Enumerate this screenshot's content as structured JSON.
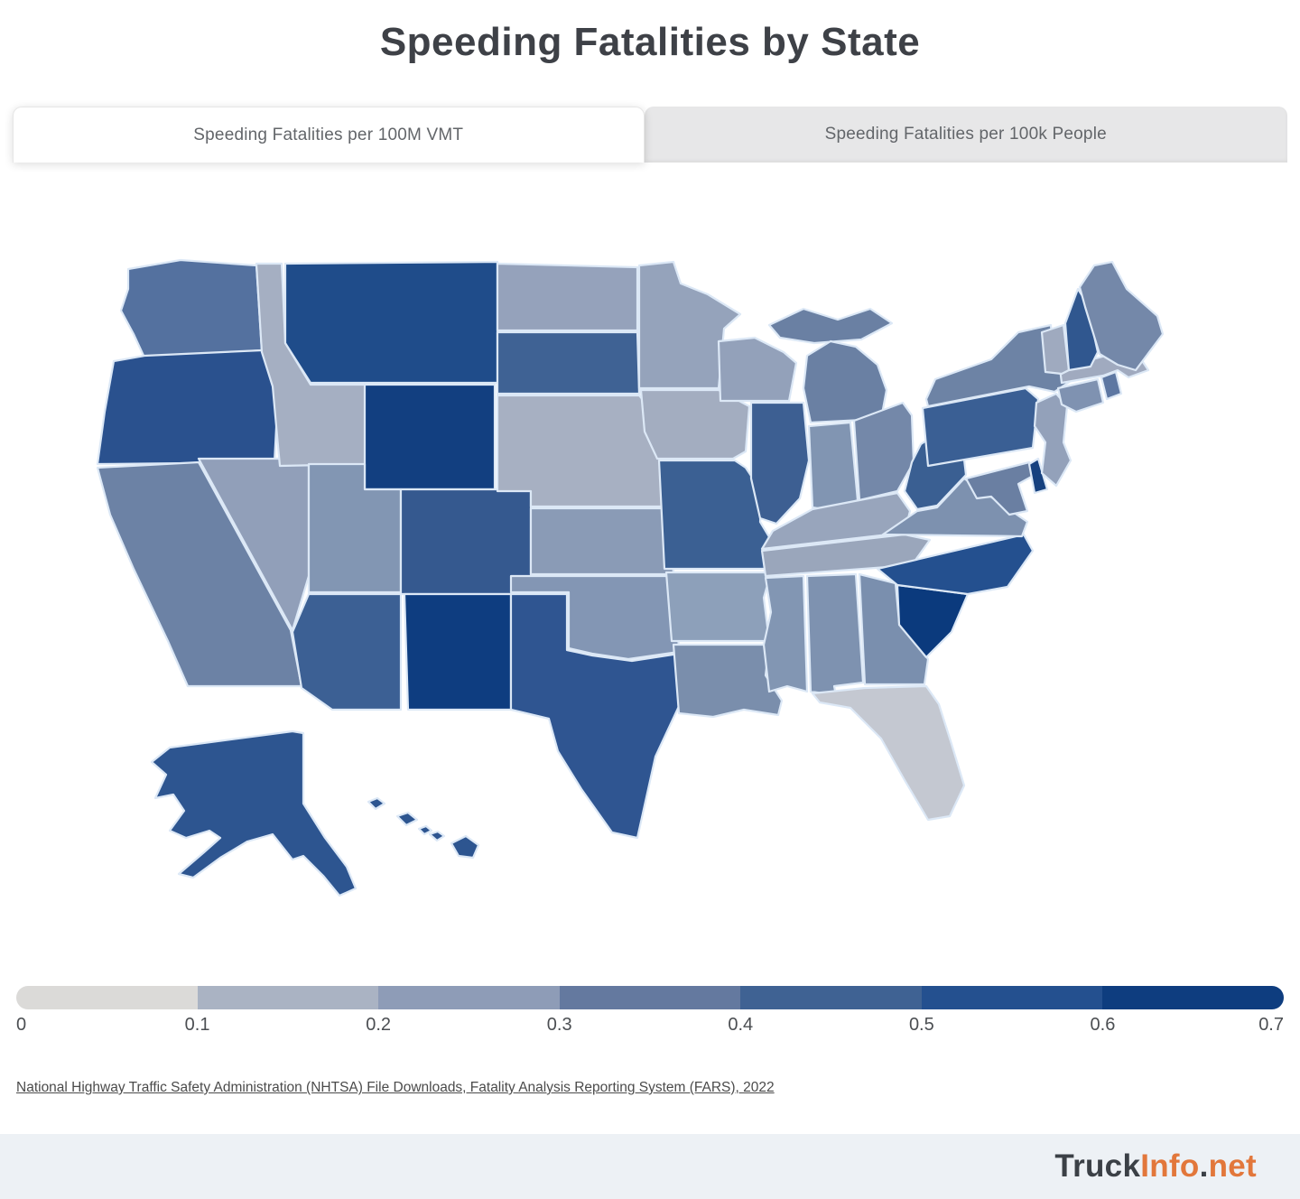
{
  "page": {
    "title": "Speeding Fatalities by State"
  },
  "tabs": [
    {
      "label": "Speeding Fatalities per 100M VMT",
      "active": true
    },
    {
      "label": "Speeding Fatalities per 100k People",
      "active": false
    }
  ],
  "legend": {
    "colors": [
      "#dbdad8",
      "#aab3c3",
      "#8e9cb7",
      "#64799f",
      "#3f6293",
      "#24508f",
      "#0e3d7f"
    ],
    "ticks": [
      "0",
      "0.1",
      "0.2",
      "0.3",
      "0.4",
      "0.5",
      "0.6",
      "0.7"
    ]
  },
  "source": {
    "text": "National Highway Traffic Safety Administration (NHTSA) File Downloads, Fatality Analysis Reporting System (FARS), 2022"
  },
  "footer": {
    "brand_parts": [
      {
        "text": "Truck",
        "color": "#3b4046"
      },
      {
        "text": "Info",
        "color": "#e2773b"
      },
      {
        "text": ".",
        "color": "#3b4046"
      },
      {
        "text": "net",
        "color": "#e2773b"
      }
    ]
  },
  "chart_data": {
    "type": "choropleth-map",
    "title": "Speeding Fatalities by State",
    "metric": "Speeding Fatalities per 100M VMT",
    "source": "NHTSA Fatality Analysis Reporting System (FARS), 2022",
    "colorscale": {
      "min": 0,
      "max": 0.7,
      "min_color": "#dbdad8",
      "max_color": "#0e3d7f",
      "legend_position": "bottom"
    },
    "states": [
      {
        "abbr": "AL",
        "name": "Alabama",
        "value": 0.31,
        "color": "#7e92b0"
      },
      {
        "abbr": "AK",
        "name": "Alaska",
        "value": 0.47,
        "color": "#2d5590"
      },
      {
        "abbr": "AZ",
        "name": "Arizona",
        "value": 0.44,
        "color": "#3c6094"
      },
      {
        "abbr": "AR",
        "name": "Arkansas",
        "value": 0.27,
        "color": "#8da0ba"
      },
      {
        "abbr": "CA",
        "name": "California",
        "value": 0.34,
        "color": "#6c82a5"
      },
      {
        "abbr": "CO",
        "name": "Colorado",
        "value": 0.45,
        "color": "#35598f"
      },
      {
        "abbr": "CT",
        "name": "Connecticut",
        "value": 0.31,
        "color": "#7f92b1"
      },
      {
        "abbr": "DE",
        "name": "Delaware",
        "value": 0.57,
        "color": "#16417f"
      },
      {
        "abbr": "FL",
        "name": "Florida",
        "value": 0.15,
        "color": "#c4c8d1"
      },
      {
        "abbr": "GA",
        "name": "Georgia",
        "value": 0.33,
        "color": "#7a8fae"
      },
      {
        "abbr": "HI",
        "name": "Hawaii",
        "value": 0.46,
        "color": "#2d5590"
      },
      {
        "abbr": "ID",
        "name": "Idaho",
        "value": 0.2,
        "color": "#a5afc2"
      },
      {
        "abbr": "IL",
        "name": "Illinois",
        "value": 0.44,
        "color": "#3d5f92"
      },
      {
        "abbr": "IN",
        "name": "Indiana",
        "value": 0.31,
        "color": "#8195b2"
      },
      {
        "abbr": "IA",
        "name": "Iowa",
        "value": 0.22,
        "color": "#a3adc0"
      },
      {
        "abbr": "KS",
        "name": "Kansas",
        "value": 0.28,
        "color": "#8a9bb6"
      },
      {
        "abbr": "KY",
        "name": "Kentucky",
        "value": 0.24,
        "color": "#98a5bc"
      },
      {
        "abbr": "LA",
        "name": "Louisiana",
        "value": 0.33,
        "color": "#7a8eac"
      },
      {
        "abbr": "ME",
        "name": "Maine",
        "value": 0.34,
        "color": "#7488a9"
      },
      {
        "abbr": "MD",
        "name": "Maryland",
        "value": 0.36,
        "color": "#6a7fa2"
      },
      {
        "abbr": "MA",
        "name": "Massachusetts",
        "value": 0.21,
        "color": "#a0aabf"
      },
      {
        "abbr": "MI",
        "name": "Michigan",
        "value": 0.35,
        "color": "#6a80a3"
      },
      {
        "abbr": "MN",
        "name": "Minnesota",
        "value": 0.25,
        "color": "#95a3bb"
      },
      {
        "abbr": "MS",
        "name": "Mississippi",
        "value": 0.3,
        "color": "#8296b3"
      },
      {
        "abbr": "MO",
        "name": "Missouri",
        "value": 0.44,
        "color": "#3b6093"
      },
      {
        "abbr": "MT",
        "name": "Montana",
        "value": 0.55,
        "color": "#1f4c8a"
      },
      {
        "abbr": "NE",
        "name": "Nebraska",
        "value": 0.21,
        "color": "#a7b0c2"
      },
      {
        "abbr": "NV",
        "name": "Nevada",
        "value": 0.25,
        "color": "#919fb9"
      },
      {
        "abbr": "NH",
        "name": "New Hampshire",
        "value": 0.45,
        "color": "#30578f"
      },
      {
        "abbr": "NJ",
        "name": "New Jersey",
        "value": 0.23,
        "color": "#93a1ba"
      },
      {
        "abbr": "NM",
        "name": "New Mexico",
        "value": 0.66,
        "color": "#0e3d80"
      },
      {
        "abbr": "NY",
        "name": "New York",
        "value": 0.35,
        "color": "#6d83a5"
      },
      {
        "abbr": "NC",
        "name": "North Carolina",
        "value": 0.53,
        "color": "#24508f"
      },
      {
        "abbr": "ND",
        "name": "North Dakota",
        "value": 0.25,
        "color": "#95a2bb"
      },
      {
        "abbr": "OH",
        "name": "Ohio",
        "value": 0.33,
        "color": "#7488a9"
      },
      {
        "abbr": "OK",
        "name": "Oklahoma",
        "value": 0.3,
        "color": "#8396b4"
      },
      {
        "abbr": "OR",
        "name": "Oregon",
        "value": 0.52,
        "color": "#2a518e"
      },
      {
        "abbr": "PA",
        "name": "Pennsylvania",
        "value": 0.44,
        "color": "#3a5f94"
      },
      {
        "abbr": "RI",
        "name": "Rhode Island",
        "value": 0.38,
        "color": "#5d77a2"
      },
      {
        "abbr": "SC",
        "name": "South Carolina",
        "value": 0.7,
        "color": "#0b3a7d"
      },
      {
        "abbr": "SD",
        "name": "South Dakota",
        "value": 0.42,
        "color": "#3f6294"
      },
      {
        "abbr": "TN",
        "name": "Tennessee",
        "value": 0.23,
        "color": "#9aa6bb"
      },
      {
        "abbr": "TX",
        "name": "Texas",
        "value": 0.46,
        "color": "#2f5591"
      },
      {
        "abbr": "UT",
        "name": "Utah",
        "value": 0.3,
        "color": "#8296b3"
      },
      {
        "abbr": "VT",
        "name": "Vermont",
        "value": 0.22,
        "color": "#9faabf"
      },
      {
        "abbr": "VA",
        "name": "Virginia",
        "value": 0.32,
        "color": "#7d91af"
      },
      {
        "abbr": "WA",
        "name": "Washington",
        "value": 0.38,
        "color": "#54719f"
      },
      {
        "abbr": "WV",
        "name": "West Virginia",
        "value": 0.44,
        "color": "#3a5f92"
      },
      {
        "abbr": "WI",
        "name": "Wisconsin",
        "value": 0.25,
        "color": "#93a1ba"
      },
      {
        "abbr": "WY",
        "name": "Wyoming",
        "value": 0.62,
        "color": "#123f80"
      }
    ]
  }
}
